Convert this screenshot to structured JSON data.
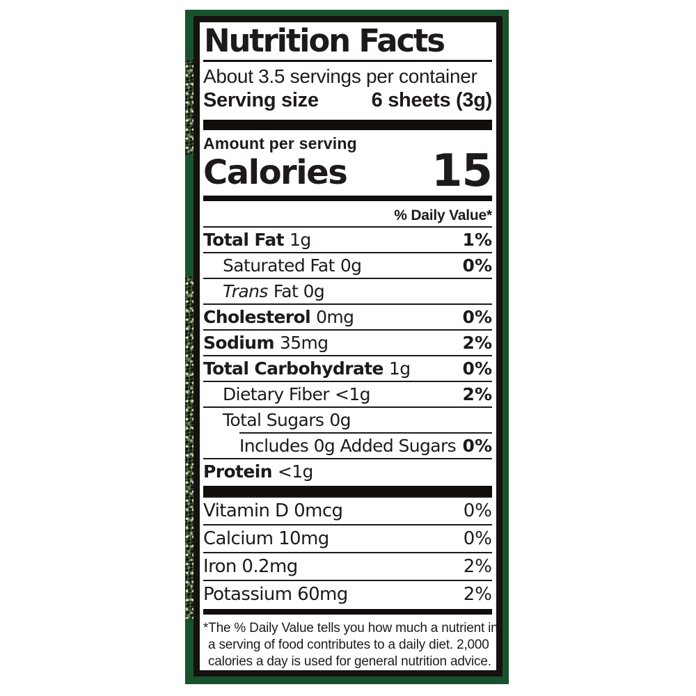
{
  "colors": {
    "frame_green": "#18522c",
    "ink_black": "#1d1a19",
    "bar_black": "#120e0c",
    "background": "#ffffff"
  },
  "label": {
    "title": "Nutrition Facts",
    "servings_per_container": "About 3.5 servings per container",
    "serving_size": {
      "label": "Serving size",
      "value": "6 sheets (3g)"
    },
    "amount_per_serving": "Amount per serving",
    "calories": {
      "label": "Calories",
      "value": "15"
    },
    "daily_value_header": "% Daily Value*",
    "nutrients": [
      {
        "name": "Total Fat",
        "amount": "1g",
        "dv": "1%"
      },
      {
        "name": "Saturated Fat",
        "amount": "0g",
        "dv": "0%"
      },
      {
        "name": "Trans",
        "amount": "Fat 0g",
        "dv": ""
      },
      {
        "name": "Cholesterol",
        "amount": "0mg",
        "dv": "0%"
      },
      {
        "name": "Sodium",
        "amount": "35mg",
        "dv": "2%"
      },
      {
        "name": "Total Carbohydrate",
        "amount": "1g",
        "dv": "0%"
      },
      {
        "name": "Dietary Fiber",
        "amount": "<1g",
        "dv": "2%"
      },
      {
        "name": "Total Sugars",
        "amount": "0g",
        "dv": ""
      },
      {
        "name": "Includes 0g Added Sugars",
        "amount": "",
        "dv": "0%"
      },
      {
        "name": "Protein",
        "amount": "<1g",
        "dv": ""
      }
    ],
    "micronutrients": [
      {
        "name": "Vitamin D 0mcg",
        "dv": "0%"
      },
      {
        "name": "Calcium 10mg",
        "dv": "0%"
      },
      {
        "name": "Iron 0.2mg",
        "dv": "2%"
      },
      {
        "name": "Potassium 60mg",
        "dv": "2%"
      }
    ],
    "footnote": {
      "lines": [
        "*The % Daily Value tells you how much a nutrient in",
        "a serving of food contributes to a daily diet. 2,000",
        "calories a day is used for general nutrition advice."
      ]
    }
  }
}
